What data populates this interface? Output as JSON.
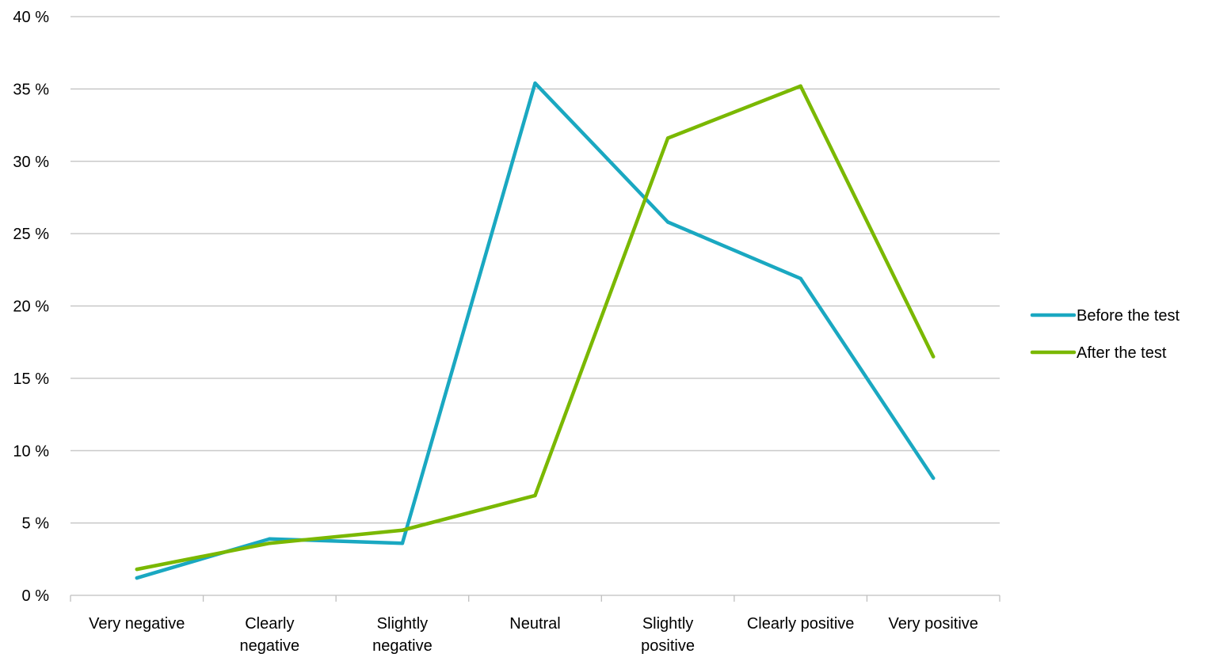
{
  "chart_data": {
    "type": "line",
    "title": "",
    "xlabel": "",
    "ylabel": "",
    "categories": [
      [
        "Very negative"
      ],
      [
        "Clearly",
        "negative"
      ],
      [
        "Slightly",
        "negative"
      ],
      [
        "Neutral"
      ],
      [
        "Slightly",
        "positive"
      ],
      [
        "Clearly positive"
      ],
      [
        "Very positive"
      ]
    ],
    "ylim": [
      0,
      40
    ],
    "y_ticks": [
      0,
      5,
      10,
      15,
      20,
      25,
      30,
      35,
      40
    ],
    "y_tick_suffix": " %",
    "grid": true,
    "legend_position": "right",
    "series": [
      {
        "name": "Before the test",
        "color": "#1aa8c1",
        "values": [
          1.2,
          3.9,
          3.6,
          35.4,
          25.8,
          21.9,
          8.1
        ]
      },
      {
        "name": "After the test",
        "color": "#7ab800",
        "values": [
          1.8,
          3.6,
          4.5,
          6.9,
          31.6,
          35.2,
          16.5
        ]
      }
    ]
  }
}
